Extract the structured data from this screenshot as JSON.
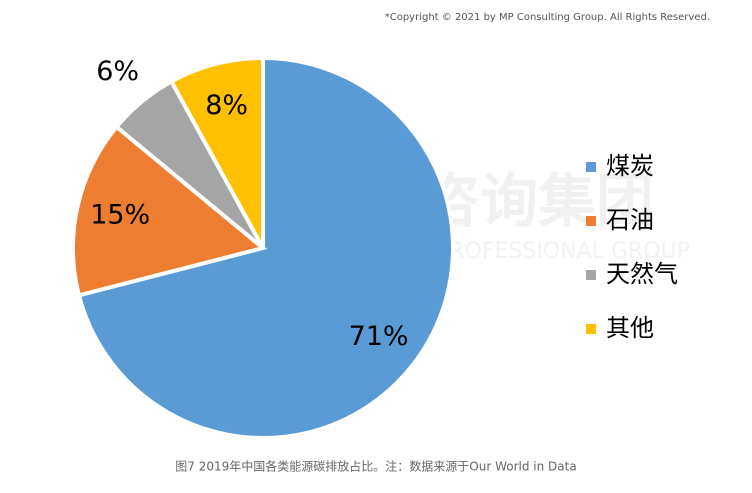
{
  "copyright": "*Copyright © 2021 by MP Consulting Group. All Rights Reserved.",
  "watermark": "中大咨询集团",
  "watermark_en": "MANAGEMENT PROFESSIONAL GROUP",
  "caption": "图7  2019年中国各类能源碳排放占比。注：数据来源于Our World in Data",
  "chart_data": {
    "type": "pie",
    "categories": [
      "煤炭",
      "石油",
      "天然气",
      "其他"
    ],
    "values": [
      71,
      15,
      6,
      8
    ],
    "value_labels": [
      "71%",
      "15%",
      "6%",
      "8%"
    ],
    "colors": [
      "#5b9bd5",
      "#ed7d31",
      "#a5a5a5",
      "#ffc000"
    ],
    "legend": "right"
  }
}
